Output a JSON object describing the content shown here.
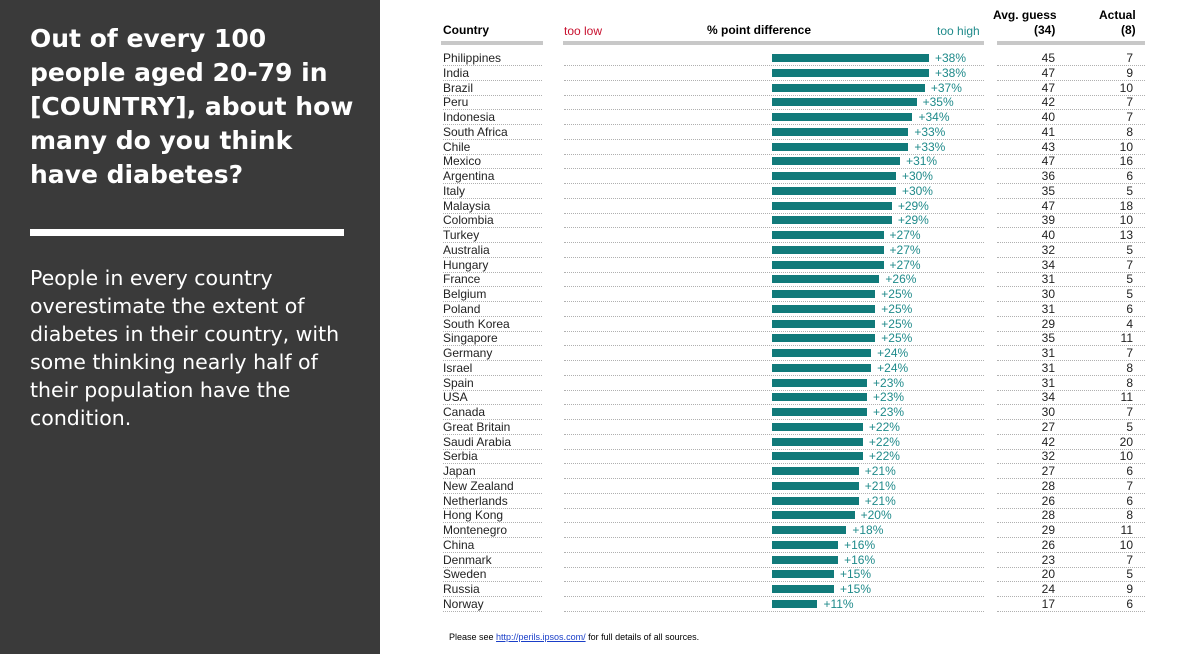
{
  "left_panel": {
    "question": "Out of every 100 people aged 20-79 in [COUNTRY], about how many do you think have diabetes?",
    "summary": "People in every country overestimate the extent of diabetes in their country, with some thinking nearly half of their population have the condition."
  },
  "headers": {
    "country": "Country",
    "too_low": "too low",
    "diff": "% point difference",
    "too_high": "too high",
    "avg_guess": "Avg. guess",
    "avg_guess_n": "(34)",
    "actual": "Actual",
    "actual_n": "(8)"
  },
  "colors": {
    "bar": "#117a7a",
    "bar_label": "#1f8a8a",
    "too_low": "#c8102e",
    "too_high": "#1f8a8a",
    "panel": "#3a3a3a"
  },
  "footnote": {
    "prefix": "Please see ",
    "link": "http://perils.ipsos.com/",
    "suffix": " for full details of all sources."
  },
  "chart_data": {
    "type": "bar",
    "orientation": "horizontal",
    "title": "% point difference",
    "xlabel": "% point difference",
    "ylabel": "Country",
    "xlim": [
      -50,
      50
    ],
    "categories": [
      "Philippines",
      "India",
      "Brazil",
      "Peru",
      "Indonesia",
      "South Africa",
      "Chile",
      "Mexico",
      "Argentina",
      "Italy",
      "Malaysia",
      "Colombia",
      "Turkey",
      "Australia",
      "Hungary",
      "France",
      "Belgium",
      "Poland",
      "South Korea",
      "Singapore",
      "Germany",
      "Israel",
      "Spain",
      "USA",
      "Canada",
      "Great Britain",
      "Saudi Arabia",
      "Serbia",
      "Japan",
      "New Zealand",
      "Netherlands",
      "Hong Kong",
      "Montenegro",
      "China",
      "Denmark",
      "Sweden",
      "Russia",
      "Norway"
    ],
    "values": [
      38,
      38,
      37,
      35,
      34,
      33,
      33,
      31,
      30,
      30,
      29,
      29,
      27,
      27,
      27,
      26,
      25,
      25,
      25,
      25,
      24,
      24,
      23,
      23,
      23,
      22,
      22,
      22,
      21,
      21,
      21,
      20,
      18,
      16,
      16,
      15,
      15,
      11
    ],
    "value_labels": [
      "+38%",
      "+38%",
      "+37%",
      "+35%",
      "+34%",
      "+33%",
      "+33%",
      "+31%",
      "+30%",
      "+30%",
      "+29%",
      "+29%",
      "+27%",
      "+27%",
      "+27%",
      "+26%",
      "+25%",
      "+25%",
      "+25%",
      "+25%",
      "+24%",
      "+24%",
      "+23%",
      "+23%",
      "+23%",
      "+22%",
      "+22%",
      "+22%",
      "+21%",
      "+21%",
      "+21%",
      "+20%",
      "+18%",
      "+16%",
      "+16%",
      "+15%",
      "+15%",
      "+11%"
    ],
    "avg_guess": [
      45,
      47,
      47,
      42,
      40,
      41,
      43,
      47,
      36,
      35,
      47,
      39,
      40,
      32,
      34,
      31,
      30,
      31,
      29,
      35,
      31,
      31,
      31,
      34,
      30,
      27,
      42,
      32,
      27,
      28,
      26,
      28,
      29,
      26,
      23,
      20,
      24,
      17
    ],
    "actual": [
      7,
      9,
      10,
      7,
      7,
      8,
      10,
      16,
      6,
      5,
      18,
      10,
      13,
      5,
      7,
      5,
      5,
      6,
      4,
      11,
      7,
      8,
      8,
      11,
      7,
      5,
      20,
      10,
      6,
      7,
      6,
      8,
      11,
      10,
      7,
      5,
      9,
      6
    ]
  }
}
